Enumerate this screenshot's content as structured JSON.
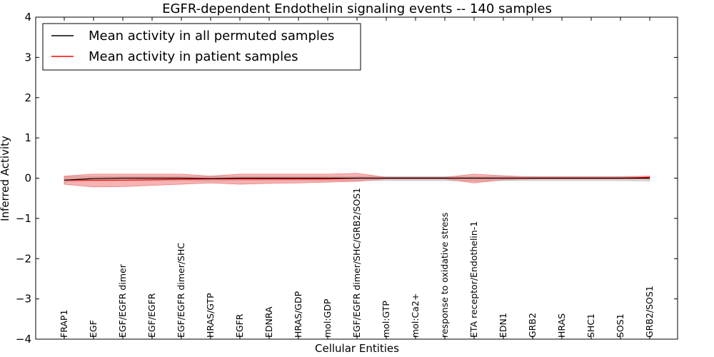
{
  "chart_data": {
    "type": "line",
    "title": "EGFR-dependent Endothelin signaling events -- 140 samples",
    "xlabel": "Cellular Entities",
    "ylabel": "Inferred Activity",
    "ylim": [
      -4,
      4
    ],
    "yticks": [
      -4,
      -3,
      -2,
      -1,
      0,
      1,
      2,
      3,
      4
    ],
    "ytick_labels": [
      "−4",
      "−3",
      "−2",
      "−1",
      "0",
      "1",
      "2",
      "3",
      "4"
    ],
    "legend_position": "top-left",
    "categories": [
      "FRAP1",
      "EGF",
      "EGF/EGFR dimer",
      "EGF/EGFR",
      "EGF/EGFR dimer/SHC",
      "HRAS/GTP",
      "EGFR",
      "EDNRA",
      "HRAS/GDP",
      "mol:GDP",
      "EGF/EGFR dimer/SHC/GRB2/SOS1",
      "mol:GTP",
      "mol:Ca2+",
      "response to oxidative stress",
      "ETA receptor/Endothelin-1",
      "EDN1",
      "GRB2",
      "HRAS",
      "SHC1",
      "SOS1",
      "GRB2/SOS1"
    ],
    "series": [
      {
        "name": "Mean activity in all permuted samples",
        "color": "#000000",
        "values": [
          -0.05,
          -0.01,
          0.0,
          0.0,
          0.0,
          -0.01,
          0.0,
          0.0,
          0.0,
          0.0,
          0.0,
          0.0,
          0.0,
          0.0,
          0.0,
          0.0,
          0.0,
          0.0,
          0.0,
          0.0,
          0.0
        ],
        "band_color": "#bbbbbb",
        "band_upper": [
          0.03,
          0.04,
          0.04,
          0.04,
          0.04,
          0.04,
          0.04,
          0.04,
          0.04,
          0.04,
          0.04,
          0.04,
          0.04,
          0.04,
          0.04,
          0.04,
          0.04,
          0.04,
          0.04,
          0.04,
          0.05
        ],
        "band_lower": [
          -0.1,
          -0.07,
          -0.06,
          -0.06,
          -0.06,
          -0.07,
          -0.06,
          -0.06,
          -0.06,
          -0.06,
          -0.06,
          -0.06,
          -0.06,
          -0.06,
          -0.07,
          -0.06,
          -0.06,
          -0.06,
          -0.06,
          -0.06,
          -0.07
        ]
      },
      {
        "name": "Mean activity in patient samples",
        "color": "#ff0000",
        "values": [
          -0.05,
          -0.05,
          -0.05,
          -0.04,
          -0.03,
          -0.02,
          -0.02,
          -0.02,
          -0.02,
          -0.02,
          0.0,
          0.0,
          0.0,
          0.0,
          0.0,
          0.0,
          0.0,
          0.0,
          0.0,
          0.0,
          0.02
        ],
        "band_color": "#f08080",
        "band_upper": [
          0.05,
          0.1,
          0.1,
          0.1,
          0.1,
          0.05,
          0.1,
          0.1,
          0.1,
          0.1,
          0.12,
          0.02,
          0.02,
          0.02,
          0.1,
          0.06,
          0.03,
          0.03,
          0.03,
          0.03,
          0.05
        ],
        "band_lower": [
          -0.15,
          -0.22,
          -0.21,
          -0.18,
          -0.15,
          -0.12,
          -0.15,
          -0.13,
          -0.12,
          -0.1,
          -0.08,
          -0.02,
          -0.02,
          -0.02,
          -0.12,
          -0.04,
          -0.02,
          -0.02,
          -0.02,
          -0.02,
          -0.02
        ]
      }
    ]
  }
}
